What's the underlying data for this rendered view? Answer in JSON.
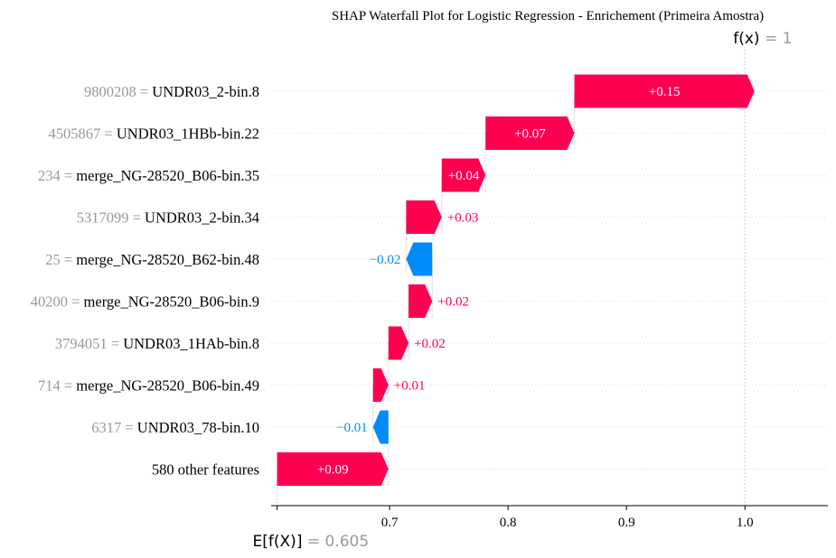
{
  "chart_data": {
    "type": "waterfall",
    "title": "SHAP Waterfall Plot for Logistic Regression - Enrichement (Primeira Amostra)",
    "fx_label": "f(x)",
    "fx_value": "1",
    "base_label": "E[f(X)]",
    "base_value_text": "0.605",
    "base_value": 0.605,
    "final_value": 1.0,
    "xlim": [
      0.6,
      1.07
    ],
    "x_ticks": [
      0.7,
      0.8,
      0.9,
      1.0
    ],
    "x_tick_labels": [
      "0.7",
      "0.8",
      "0.9",
      "1.0"
    ],
    "colors": {
      "positive": "#ff0051",
      "negative": "#008bfb",
      "grid": "#cccccc",
      "feature_value": "#999999"
    },
    "features": [
      {
        "value": "9800208",
        "name": "UNDR03_2-bin.8",
        "shap": 0.152,
        "label": "+0.15"
      },
      {
        "value": "4505867",
        "name": "UNDR03_1HBb-bin.22",
        "shap": 0.075,
        "label": "+0.07"
      },
      {
        "value": "234",
        "name": "merge_NG-28520_B06-bin.35",
        "shap": 0.037,
        "label": "+0.04"
      },
      {
        "value": "5317099",
        "name": "UNDR03_2-bin.34",
        "shap": 0.03,
        "label": "+0.03"
      },
      {
        "value": "25",
        "name": "merge_NG-28520_B62-bin.48",
        "shap": -0.022,
        "label": "−0.02"
      },
      {
        "value": "40200",
        "name": "merge_NG-28520_B06-bin.9",
        "shap": 0.02,
        "label": "+0.02"
      },
      {
        "value": "3794051",
        "name": "UNDR03_1HAb-bin.8",
        "shap": 0.017,
        "label": "+0.02"
      },
      {
        "value": "714",
        "name": "merge_NG-28520_B06-bin.49",
        "shap": 0.013,
        "label": "+0.01"
      },
      {
        "value": "6317",
        "name": "UNDR03_78-bin.10",
        "shap": -0.013,
        "label": "−0.01"
      },
      {
        "value": "",
        "name": "580 other features",
        "shap": 0.094,
        "label": "+0.09"
      }
    ]
  }
}
